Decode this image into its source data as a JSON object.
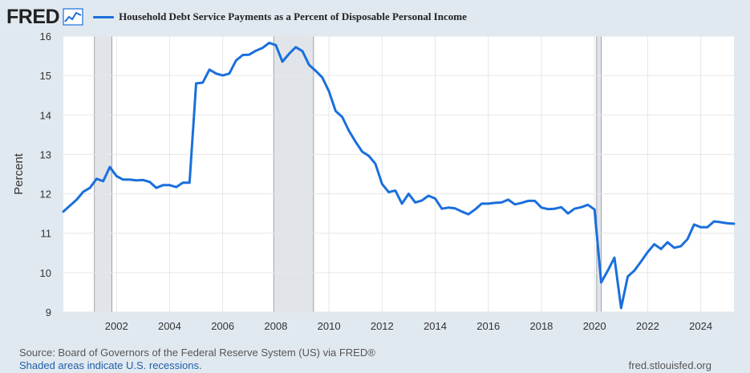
{
  "header": {
    "logo_text": "FRED",
    "logo_icon": "line-graph-icon",
    "legend_label": "Household Debt Service Payments as a Percent of Disposable Personal Income",
    "series_color": "#1a6fdc"
  },
  "footer": {
    "source": "Source: Board of Governors of the Federal Reserve System (US) via FRED®",
    "recession_note": "Shaded areas indicate U.S. recessions.",
    "site": "fred.stlouisfed.org"
  },
  "chart_data": {
    "type": "line",
    "ylabel": "Percent",
    "ylim": [
      9,
      16
    ],
    "yticks": [
      9,
      10,
      11,
      12,
      13,
      14,
      15,
      16
    ],
    "xlim": [
      2000.0,
      2025.25
    ],
    "xticks": [
      "2002",
      "2004",
      "2006",
      "2008",
      "2010",
      "2012",
      "2014",
      "2016",
      "2018",
      "2020",
      "2022",
      "2024"
    ],
    "grid": true,
    "recessions": [
      [
        2001.17,
        2001.83
      ],
      [
        2007.92,
        2009.42
      ],
      [
        2020.08,
        2020.25
      ]
    ],
    "recession_color": "#e1e5ea",
    "series": [
      {
        "color": "#1a6fdc",
        "x": [
          2000.0,
          2000.25,
          2000.5,
          2000.75,
          2001.0,
          2001.25,
          2001.5,
          2001.75,
          2002.0,
          2002.25,
          2002.5,
          2002.75,
          2003.0,
          2003.25,
          2003.5,
          2003.75,
          2004.0,
          2004.25,
          2004.5,
          2004.75,
          2005.0,
          2005.25,
          2005.5,
          2005.75,
          2006.0,
          2006.25,
          2006.5,
          2006.75,
          2007.0,
          2007.25,
          2007.5,
          2007.75,
          2008.0,
          2008.25,
          2008.5,
          2008.75,
          2009.0,
          2009.25,
          2009.5,
          2009.75,
          2010.0,
          2010.25,
          2010.5,
          2010.75,
          2011.0,
          2011.25,
          2011.5,
          2011.75,
          2012.0,
          2012.25,
          2012.5,
          2012.75,
          2013.0,
          2013.25,
          2013.5,
          2013.75,
          2014.0,
          2014.25,
          2014.5,
          2014.75,
          2015.0,
          2015.25,
          2015.5,
          2015.75,
          2016.0,
          2016.25,
          2016.5,
          2016.75,
          2017.0,
          2017.25,
          2017.5,
          2017.75,
          2018.0,
          2018.25,
          2018.5,
          2018.75,
          2019.0,
          2019.25,
          2019.5,
          2019.75,
          2020.0,
          2020.25,
          2020.5,
          2020.75,
          2021.0,
          2021.25,
          2021.5,
          2021.75,
          2022.0,
          2022.25,
          2022.5,
          2022.75,
          2023.0,
          2023.25,
          2023.5,
          2023.75,
          2024.0,
          2024.25,
          2024.5,
          2024.75,
          2025.0,
          2025.25
        ],
        "y": [
          11.55,
          11.7,
          11.85,
          12.05,
          12.15,
          12.38,
          12.32,
          12.68,
          12.45,
          12.36,
          12.36,
          12.34,
          12.35,
          12.3,
          12.15,
          12.22,
          12.22,
          12.17,
          12.28,
          12.28,
          14.8,
          14.82,
          15.15,
          15.05,
          15.0,
          15.05,
          15.38,
          15.52,
          15.53,
          15.63,
          15.7,
          15.83,
          15.77,
          15.35,
          15.55,
          15.72,
          15.62,
          15.27,
          15.12,
          14.95,
          14.6,
          14.1,
          13.95,
          13.6,
          13.32,
          13.07,
          12.96,
          12.76,
          12.25,
          12.04,
          12.08,
          11.75,
          12.0,
          11.78,
          11.83,
          11.95,
          11.88,
          11.62,
          11.65,
          11.63,
          11.55,
          11.48,
          11.6,
          11.75,
          11.75,
          11.77,
          11.78,
          11.85,
          11.73,
          11.77,
          11.82,
          11.82,
          11.65,
          11.61,
          11.62,
          11.66,
          11.5,
          11.62,
          11.66,
          11.72,
          11.6,
          9.75,
          10.05,
          10.38,
          9.1,
          9.9,
          10.05,
          10.28,
          10.52,
          10.72,
          10.6,
          10.77,
          10.63,
          10.67,
          10.85,
          11.22,
          11.15,
          11.15,
          11.3,
          11.28,
          11.25,
          11.24
        ]
      }
    ]
  }
}
